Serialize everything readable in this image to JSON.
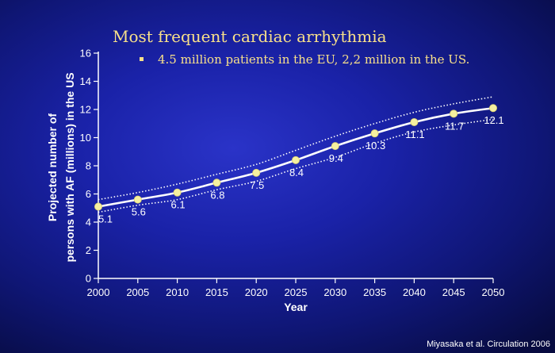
{
  "slide": {
    "title": "Most frequent cardiac arrhythmia",
    "bullet": "4.5 million patients in the EU, 2,2 million in the US.",
    "citation": "Miyasaka et al. Circulation 2006"
  },
  "colors": {
    "title_text": "#f8e08a",
    "axis": "#ffffff",
    "line": "#ffffff",
    "marker": "#f6f0a0"
  },
  "chart_data": {
    "type": "line",
    "xlabel": "Year",
    "ylabel_lines": [
      "Projected number of",
      "persons with AF (millions) in the US"
    ],
    "x": [
      2000,
      2005,
      2010,
      2015,
      2020,
      2025,
      2030,
      2035,
      2040,
      2045,
      2050
    ],
    "xlim": [
      2000,
      2050
    ],
    "ylim": [
      0,
      16
    ],
    "x_ticks": [
      "2000",
      "2005",
      "2010",
      "2015",
      "2020",
      "2025",
      "2030",
      "2035",
      "2040",
      "2045",
      "2050"
    ],
    "y_ticks": [
      "0",
      "2",
      "4",
      "6",
      "8",
      "10",
      "12",
      "14",
      "16"
    ],
    "grid": false,
    "series": [
      {
        "values": [
          5.1,
          5.6,
          6.1,
          6.8,
          7.5,
          8.4,
          9.4,
          10.3,
          11.1,
          11.7,
          12.1
        ],
        "labels": [
          "5.1",
          "5.6",
          "6.1",
          "6.8",
          "7.5",
          "8.4",
          "9.4",
          "10.3",
          "11.1",
          "11.7",
          "12.1"
        ]
      }
    ],
    "confidence_band": {
      "upper": [
        5.6,
        6.1,
        6.7,
        7.4,
        8.1,
        9.1,
        10.1,
        11.0,
        11.8,
        12.4,
        12.9
      ],
      "lower": [
        4.7,
        5.2,
        5.6,
        6.3,
        6.9,
        7.8,
        8.6,
        9.6,
        10.4,
        10.9,
        11.3
      ]
    }
  }
}
